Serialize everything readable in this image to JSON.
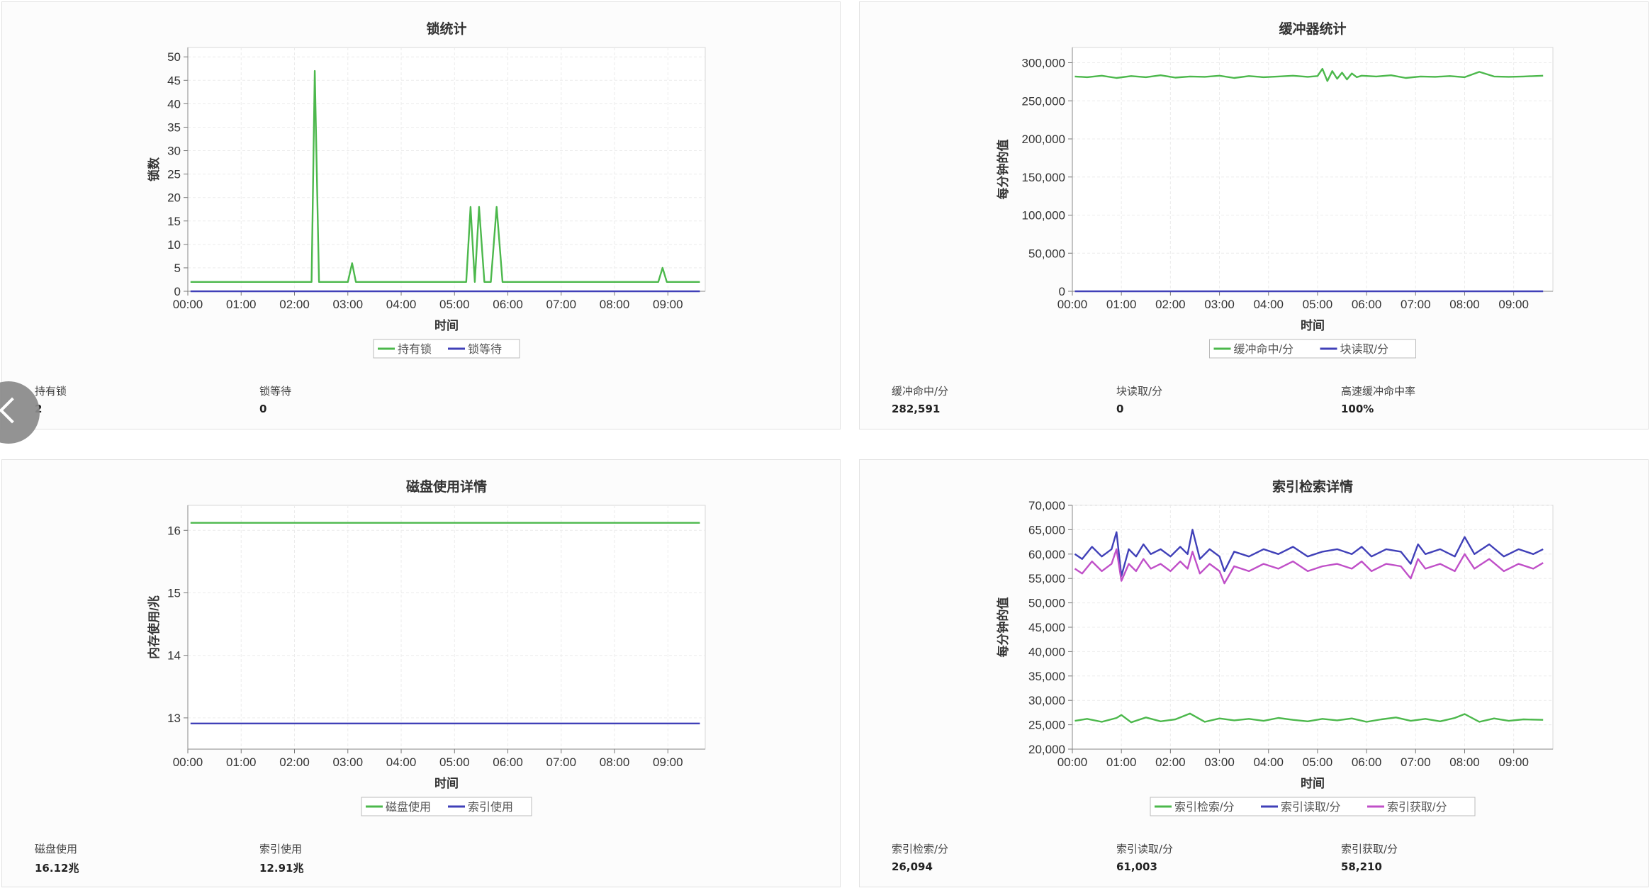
{
  "panels": [
    {
      "id": "lock",
      "stats": [
        {
          "label": "持有锁",
          "value": "2"
        },
        {
          "label": "锁等待",
          "value": "0"
        }
      ]
    },
    {
      "id": "buffer",
      "stats": [
        {
          "label": "缓冲命中/分",
          "value": "282,591"
        },
        {
          "label": "块读取/分",
          "value": "0"
        },
        {
          "label": "高速缓冲命中率",
          "value": "100%"
        }
      ]
    },
    {
      "id": "disk",
      "stats": [
        {
          "label": "磁盘使用",
          "value": "16.12兆"
        },
        {
          "label": "索引使用",
          "value": "12.91兆"
        }
      ]
    },
    {
      "id": "index",
      "stats": [
        {
          "label": "索引检索/分",
          "value": "26,094"
        },
        {
          "label": "索引读取/分",
          "value": "61,003"
        },
        {
          "label": "索引获取/分",
          "value": "58,210"
        }
      ]
    }
  ],
  "chart_data": [
    {
      "type": "line",
      "title": "锁统计",
      "xlabel": "时间",
      "ylabel": "锁数",
      "x_ticks": [
        "00:00",
        "01:00",
        "02:00",
        "03:00",
        "04:00",
        "05:00",
        "06:00",
        "07:00",
        "08:00",
        "09:00"
      ],
      "xlim": [
        0,
        9.7
      ],
      "y_ticks": [
        "0",
        "5",
        "10",
        "15",
        "20",
        "25",
        "30",
        "35",
        "40",
        "45",
        "50"
      ],
      "ylim": [
        0,
        52
      ],
      "legend_position": "bottom-center",
      "grid": true,
      "series": [
        {
          "name": "持有锁",
          "color": "#4cb84c",
          "x": [
            0.05,
            2.25,
            2.32,
            2.38,
            2.46,
            3.0,
            3.08,
            3.15,
            4.95,
            5.22,
            5.3,
            5.38,
            5.46,
            5.56,
            5.68,
            5.79,
            5.9,
            8.82,
            8.9,
            8.98,
            9.6
          ],
          "y": [
            2,
            2,
            2,
            47,
            2,
            2,
            6,
            2,
            2,
            2,
            18,
            2,
            18,
            2,
            2,
            18,
            2,
            2,
            5,
            2,
            2
          ]
        },
        {
          "name": "锁等待",
          "color": "#4040b8",
          "x": [
            0.05,
            9.6
          ],
          "y": [
            0,
            0
          ]
        }
      ]
    },
    {
      "type": "line",
      "title": "缓冲器统计",
      "xlabel": "时间",
      "ylabel": "每分钟的值",
      "x_ticks": [
        "00:00",
        "01:00",
        "02:00",
        "03:00",
        "04:00",
        "05:00",
        "06:00",
        "07:00",
        "08:00",
        "09:00"
      ],
      "xlim": [
        0,
        9.8
      ],
      "y_ticks": [
        "0",
        "50,000",
        "100,000",
        "150,000",
        "200,000",
        "250,000",
        "300,000"
      ],
      "ylim": [
        0,
        320000
      ],
      "legend_position": "bottom-center",
      "grid": true,
      "series": [
        {
          "name": "缓冲命中/分",
          "color": "#4cb84c",
          "x": [
            0.05,
            0.3,
            0.6,
            0.9,
            1.2,
            1.5,
            1.8,
            2.1,
            2.4,
            2.7,
            3.0,
            3.3,
            3.6,
            3.9,
            4.2,
            4.5,
            4.8,
            5.0,
            5.1,
            5.2,
            5.3,
            5.4,
            5.5,
            5.6,
            5.7,
            5.8,
            5.9,
            6.2,
            6.5,
            6.8,
            7.1,
            7.4,
            7.7,
            8.0,
            8.3,
            8.6,
            8.9,
            9.2,
            9.6
          ],
          "y": [
            282000,
            281000,
            283000,
            280000,
            282500,
            281000,
            283500,
            280500,
            282000,
            281500,
            283000,
            280000,
            282500,
            281000,
            282000,
            283000,
            281500,
            282500,
            292000,
            276000,
            289000,
            279000,
            287000,
            278000,
            286000,
            281000,
            283000,
            282000,
            283500,
            280000,
            282000,
            281500,
            282500,
            281000,
            288000,
            282000,
            281500,
            282000,
            283000
          ]
        },
        {
          "name": "块读取/分",
          "color": "#4040b8",
          "x": [
            0.05,
            9.6
          ],
          "y": [
            0,
            0
          ]
        }
      ]
    },
    {
      "type": "line",
      "title": "磁盘使用详情",
      "xlabel": "时间",
      "ylabel": "内存使用/兆",
      "x_ticks": [
        "00:00",
        "01:00",
        "02:00",
        "03:00",
        "04:00",
        "05:00",
        "06:00",
        "07:00",
        "08:00",
        "09:00"
      ],
      "xlim": [
        0,
        9.7
      ],
      "y_ticks": [
        "13",
        "14",
        "15",
        "16"
      ],
      "ylim": [
        12.5,
        16.4
      ],
      "legend_position": "bottom-center",
      "grid": true,
      "series": [
        {
          "name": "磁盘使用",
          "color": "#4cb84c",
          "x": [
            0.05,
            9.6
          ],
          "y": [
            16.12,
            16.12
          ]
        },
        {
          "name": "索引使用",
          "color": "#4040b8",
          "x": [
            0.05,
            9.6
          ],
          "y": [
            12.91,
            12.91
          ]
        }
      ]
    },
    {
      "type": "line",
      "title": "索引检索详情",
      "xlabel": "时间",
      "ylabel": "每分钟的值",
      "x_ticks": [
        "00:00",
        "01:00",
        "02:00",
        "03:00",
        "04:00",
        "05:00",
        "06:00",
        "07:00",
        "08:00",
        "09:00"
      ],
      "xlim": [
        0,
        9.8
      ],
      "y_ticks": [
        "20,000",
        "25,000",
        "30,000",
        "35,000",
        "40,000",
        "45,000",
        "50,000",
        "55,000",
        "60,000",
        "65,000",
        "70,000"
      ],
      "ylim": [
        20000,
        70000
      ],
      "legend_position": "bottom-center",
      "grid": true,
      "series": [
        {
          "name": "索引检索/分",
          "color": "#4cb84c",
          "x": [
            0.05,
            0.3,
            0.6,
            0.9,
            1.0,
            1.2,
            1.5,
            1.8,
            2.1,
            2.4,
            2.7,
            3.0,
            3.3,
            3.6,
            3.9,
            4.2,
            4.5,
            4.8,
            5.1,
            5.4,
            5.7,
            6.0,
            6.3,
            6.6,
            6.9,
            7.2,
            7.5,
            7.8,
            8.0,
            8.3,
            8.6,
            8.9,
            9.2,
            9.6
          ],
          "y": [
            25800,
            26200,
            25600,
            26400,
            27000,
            25500,
            26500,
            25700,
            26100,
            27300,
            25600,
            26300,
            25900,
            26200,
            25800,
            26400,
            26000,
            25700,
            26200,
            25900,
            26300,
            25600,
            26100,
            26500,
            25800,
            26200,
            25700,
            26400,
            27200,
            25600,
            26300,
            25800,
            26100,
            26000
          ]
        },
        {
          "name": "索引读取/分",
          "color": "#4040b8",
          "x": [
            0.05,
            0.2,
            0.4,
            0.6,
            0.8,
            0.9,
            1.0,
            1.15,
            1.3,
            1.45,
            1.6,
            1.8,
            2.0,
            2.2,
            2.35,
            2.45,
            2.6,
            2.8,
            3.0,
            3.1,
            3.3,
            3.6,
            3.9,
            4.2,
            4.5,
            4.8,
            5.1,
            5.4,
            5.7,
            5.9,
            6.1,
            6.4,
            6.7,
            6.9,
            7.05,
            7.2,
            7.5,
            7.8,
            8.0,
            8.2,
            8.5,
            8.8,
            9.1,
            9.4,
            9.6
          ],
          "y": [
            60000,
            59000,
            61500,
            59500,
            61000,
            64500,
            55500,
            61000,
            59500,
            62000,
            60000,
            61000,
            59500,
            61500,
            60000,
            65000,
            59000,
            61000,
            59500,
            56500,
            60500,
            59500,
            61000,
            60000,
            61500,
            59500,
            60500,
            61000,
            60000,
            61500,
            59500,
            61000,
            60500,
            58000,
            62000,
            60000,
            61000,
            59500,
            63500,
            60000,
            62000,
            59500,
            61000,
            60000,
            61000
          ]
        },
        {
          "name": "索引获取/分",
          "color": "#c050c8",
          "x": [
            0.05,
            0.2,
            0.4,
            0.6,
            0.8,
            0.9,
            1.0,
            1.15,
            1.3,
            1.45,
            1.6,
            1.8,
            2.0,
            2.2,
            2.35,
            2.45,
            2.6,
            2.8,
            3.0,
            3.1,
            3.3,
            3.6,
            3.9,
            4.2,
            4.5,
            4.8,
            5.1,
            5.4,
            5.7,
            5.9,
            6.1,
            6.4,
            6.7,
            6.9,
            7.05,
            7.2,
            7.5,
            7.8,
            8.0,
            8.2,
            8.5,
            8.8,
            9.1,
            9.4,
            9.6
          ],
          "y": [
            57000,
            56000,
            58500,
            56500,
            58000,
            61000,
            54500,
            58000,
            56500,
            59000,
            57000,
            58000,
            56500,
            58500,
            57000,
            60500,
            56000,
            58000,
            56500,
            54000,
            57500,
            56500,
            58000,
            57000,
            58500,
            56500,
            57500,
            58000,
            57000,
            58500,
            56500,
            58000,
            57500,
            55000,
            59000,
            57000,
            58000,
            56500,
            60000,
            57000,
            59000,
            56500,
            58000,
            57000,
            58200
          ]
        }
      ]
    }
  ]
}
